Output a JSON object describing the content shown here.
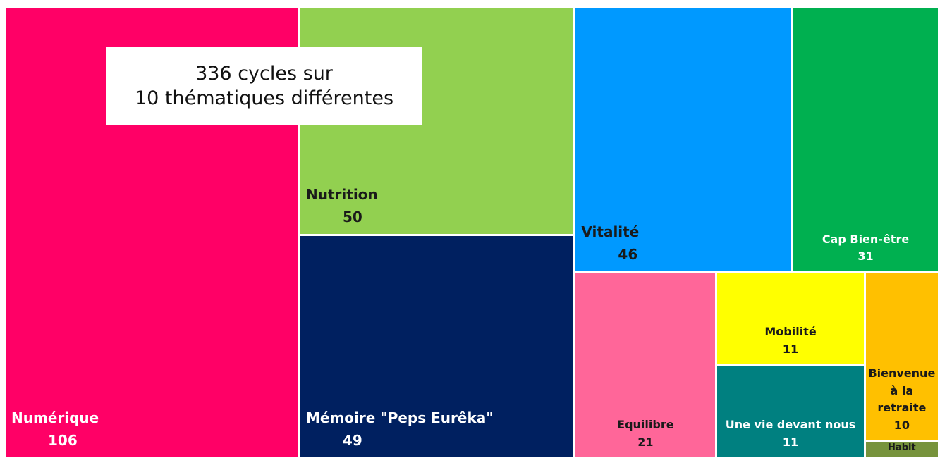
{
  "chart_data": {
    "type": "treemap",
    "annotation": [
      "336 cycles sur",
      "10 thématiques différentes"
    ],
    "categories": [
      "Numérique",
      "Nutrition",
      "Mémoire \"Peps Eurêka\"",
      "Vitalité",
      "Cap Bien-être",
      "Equilibre",
      "Mobilité",
      "Une vie devant nous",
      "Bienvenue à la retraite",
      "Habit"
    ],
    "values": [
      106,
      50,
      49,
      46,
      31,
      21,
      11,
      11,
      10,
      1
    ],
    "colors": [
      "#ff0066",
      "#92d050",
      "#002060",
      "#0099ff",
      "#00b050",
      "#ff6699",
      "#ffff00",
      "#008080",
      "#ffc000",
      "#77933c"
    ]
  }
}
